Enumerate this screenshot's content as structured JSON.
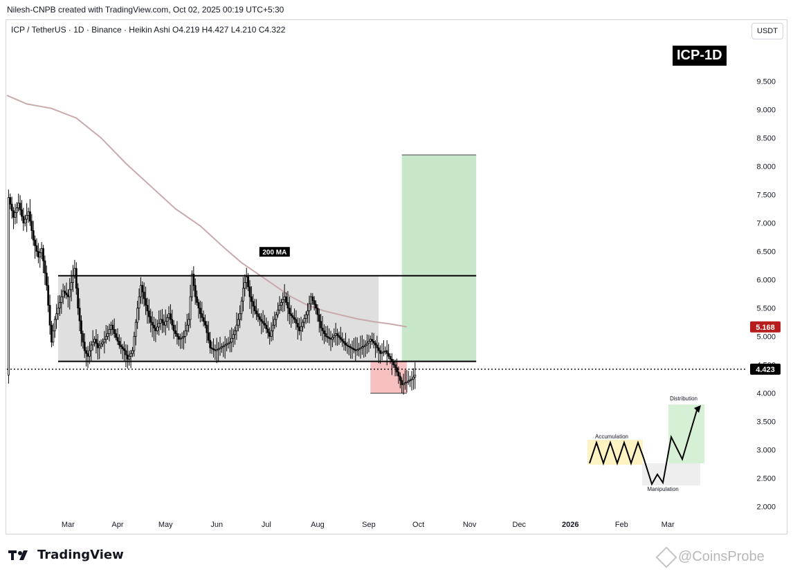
{
  "header": {
    "creator_line": "Nilesh-CNPB created with TradingView.com, Oct 02, 2025 00:19 UTC+5:30",
    "symbol_line": "ICP / TetherUS · 1D · Binance · Heikin Ashi  O4.219  H4.427  L4.210  C4.322",
    "currency_button": "USDT",
    "badge": "ICP-1D"
  },
  "footer": {
    "logo_text": "TradingView",
    "watermark": "@CoinsProbe"
  },
  "colors": {
    "up_candle": "#ffffff",
    "candle_outline": "#000000",
    "ma_line": "#c9a9ab",
    "range_box": "#d9d9d9",
    "target_box": "#c8e6c9",
    "stop_box": "#f8c1c1",
    "ma_label": "#b71c1c",
    "price_label": "#000000"
  },
  "chart_data": {
    "type": "candlestick",
    "title": "ICP / TetherUS · 1D · Binance · Heikin Ashi",
    "ylim": [
      1.85,
      10.2
    ],
    "y_ticks": [
      "9.500",
      "9.000",
      "8.500",
      "8.000",
      "7.500",
      "7.000",
      "6.500",
      "6.000",
      "5.500",
      "5.000",
      "4.500",
      "4.000",
      "3.500",
      "3.000",
      "2.500",
      "2.000"
    ],
    "y_tick_values": [
      9.5,
      9.0,
      8.5,
      8.0,
      7.5,
      7.0,
      6.5,
      6.0,
      5.5,
      5.0,
      4.5,
      4.0,
      3.5,
      3.0,
      2.5,
      2.0
    ],
    "x_labels": [
      "Mar",
      "Apr",
      "May",
      "Jun",
      "Jul",
      "Aug",
      "Sep",
      "Oct",
      "Nov",
      "Dec",
      "2026",
      "Feb",
      "Mar"
    ],
    "x_label_days": [
      15,
      45,
      74,
      105,
      135,
      166,
      197,
      227,
      258,
      288,
      319,
      350,
      378
    ],
    "x_label_bold": [
      false,
      false,
      false,
      false,
      false,
      false,
      false,
      false,
      false,
      false,
      true,
      false,
      false
    ],
    "date_range_days": [
      -22,
      424
    ],
    "ohlc_close_path": [
      [
        -21,
        7.45
      ],
      [
        -18,
        7.1
      ],
      [
        -15,
        7.35
      ],
      [
        -12,
        7.0
      ],
      [
        -9,
        7.2
      ],
      [
        -6,
        6.7
      ],
      [
        -3,
        6.4
      ],
      [
        -1,
        6.55
      ],
      [
        2,
        5.9
      ],
      [
        4,
        5.2
      ],
      [
        5,
        4.9
      ],
      [
        7,
        5.3
      ],
      [
        9,
        5.5
      ],
      [
        12,
        5.8
      ],
      [
        15,
        5.7
      ],
      [
        17,
        5.95
      ],
      [
        19,
        6.2
      ],
      [
        21,
        5.5
      ],
      [
        23,
        5.05
      ],
      [
        25,
        4.75
      ],
      [
        27,
        4.65
      ],
      [
        29,
        4.85
      ],
      [
        31,
        4.95
      ],
      [
        33,
        4.8
      ],
      [
        36,
        4.9
      ],
      [
        39,
        5.05
      ],
      [
        41,
        5.2
      ],
      [
        43,
        5.05
      ],
      [
        46,
        4.85
      ],
      [
        49,
        4.75
      ],
      [
        51,
        4.6
      ],
      [
        54,
        4.75
      ],
      [
        57,
        5.5
      ],
      [
        59,
        5.9
      ],
      [
        62,
        5.55
      ],
      [
        65,
        5.25
      ],
      [
        68,
        5.1
      ],
      [
        71,
        5.3
      ],
      [
        73,
        5.2
      ],
      [
        76,
        5.4
      ],
      [
        79,
        5.1
      ],
      [
        82,
        4.95
      ],
      [
        85,
        5.0
      ],
      [
        88,
        5.3
      ],
      [
        90,
        6.1
      ],
      [
        92,
        5.7
      ],
      [
        95,
        5.4
      ],
      [
        98,
        5.2
      ],
      [
        101,
        4.8
      ],
      [
        104,
        4.75
      ],
      [
        107,
        4.8
      ],
      [
        110,
        4.85
      ],
      [
        113,
        4.9
      ],
      [
        116,
        5.1
      ],
      [
        119,
        5.4
      ],
      [
        121,
        5.85
      ],
      [
        123,
        6.05
      ],
      [
        125,
        5.7
      ],
      [
        128,
        5.45
      ],
      [
        131,
        5.3
      ],
      [
        134,
        5.2
      ],
      [
        137,
        5.0
      ],
      [
        140,
        5.3
      ],
      [
        143,
        5.55
      ],
      [
        146,
        5.7
      ],
      [
        149,
        5.4
      ],
      [
        152,
        5.3
      ],
      [
        155,
        5.1
      ],
      [
        157,
        5.25
      ],
      [
        160,
        5.45
      ],
      [
        162,
        5.7
      ],
      [
        165,
        5.5
      ],
      [
        168,
        5.15
      ],
      [
        171,
        5.0
      ],
      [
        174,
        4.95
      ],
      [
        177,
        5.05
      ],
      [
        180,
        4.95
      ],
      [
        183,
        4.85
      ],
      [
        186,
        4.8
      ],
      [
        189,
        4.75
      ],
      [
        192,
        4.8
      ],
      [
        195,
        4.85
      ],
      [
        198,
        4.95
      ],
      [
        201,
        4.85
      ],
      [
        204,
        4.7
      ],
      [
        207,
        4.75
      ],
      [
        210,
        4.6
      ],
      [
        213,
        4.45
      ],
      [
        215,
        4.3
      ],
      [
        217,
        4.15
      ],
      [
        220,
        4.2
      ],
      [
        223,
        4.25
      ],
      [
        225,
        4.32
      ]
    ],
    "last_close": 4.322,
    "ma200": {
      "label": "200 MA",
      "value_label": "5.168",
      "points": [
        [
          -22,
          9.25
        ],
        [
          -10,
          9.1
        ],
        [
          5,
          9.02
        ],
        [
          20,
          8.85
        ],
        [
          35,
          8.5
        ],
        [
          50,
          8.05
        ],
        [
          65,
          7.65
        ],
        [
          80,
          7.25
        ],
        [
          95,
          6.95
        ],
        [
          110,
          6.55
        ],
        [
          120,
          6.3
        ],
        [
          130,
          6.1
        ],
        [
          140,
          5.9
        ],
        [
          150,
          5.7
        ],
        [
          160,
          5.55
        ],
        [
          170,
          5.45
        ],
        [
          180,
          5.38
        ],
        [
          190,
          5.31
        ],
        [
          200,
          5.26
        ],
        [
          210,
          5.22
        ],
        [
          220,
          5.17
        ]
      ]
    },
    "range_box": {
      "x": [
        9,
        203
      ],
      "y": [
        4.56,
        6.07
      ]
    },
    "resistance_line": {
      "y": 6.07,
      "x": [
        9,
        262
      ]
    },
    "support_line": {
      "y": 4.56,
      "x": [
        9,
        262
      ]
    },
    "current_price_line": {
      "y": 4.423,
      "label": "4.423"
    },
    "target_box": {
      "x": [
        217,
        262
      ],
      "y": [
        4.56,
        8.2
      ]
    },
    "stop_box": {
      "x": [
        198,
        220
      ],
      "y": [
        4.0,
        4.56
      ]
    },
    "wyckoff_inset": {
      "labels": [
        "Accumulation",
        "Manipulation",
        "Distribution"
      ]
    }
  }
}
